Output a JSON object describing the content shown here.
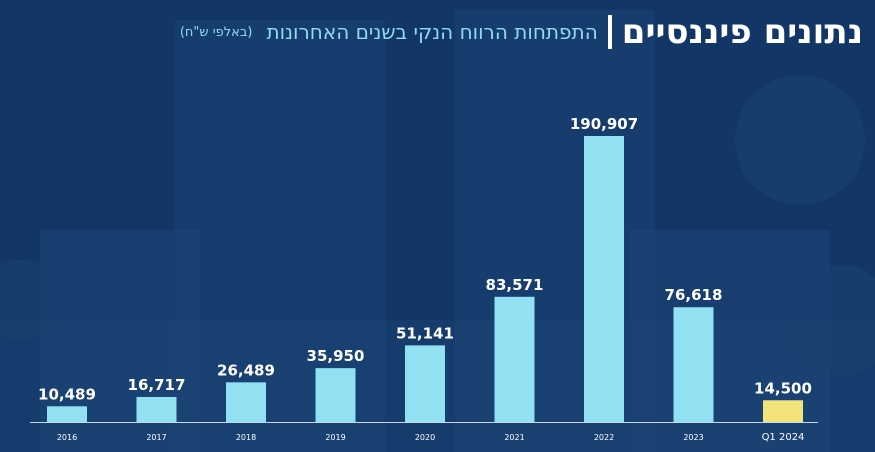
{
  "header": {
    "title": "נתונים פיננסיים",
    "subtitle": "התפתחות הרווח הנקי בשנים האחרונות",
    "unit_note": "(באלפי ש\"ח)"
  },
  "colors": {
    "bar": "#91e1f2",
    "bar_highlight": "#f2e47a",
    "axis": "#c8d6e6",
    "background": "#123767"
  },
  "chart_data": {
    "type": "bar",
    "title": "התפתחות הרווח הנקי בשנים האחרונות",
    "categories": [
      "2016",
      "2017",
      "2018",
      "2019",
      "2020",
      "2021",
      "2022",
      "2023",
      "Q1 2024"
    ],
    "values": [
      10489,
      16717,
      26489,
      35950,
      51141,
      83571,
      190907,
      76618,
      14500
    ],
    "value_labels": [
      "10,489",
      "16,717",
      "26,489",
      "35,950",
      "51,141",
      "83,571",
      "190,907",
      "76,618",
      "14,500"
    ],
    "highlight_index": 8,
    "ylim": [
      0,
      190907
    ],
    "grid": false,
    "legend": "none"
  }
}
